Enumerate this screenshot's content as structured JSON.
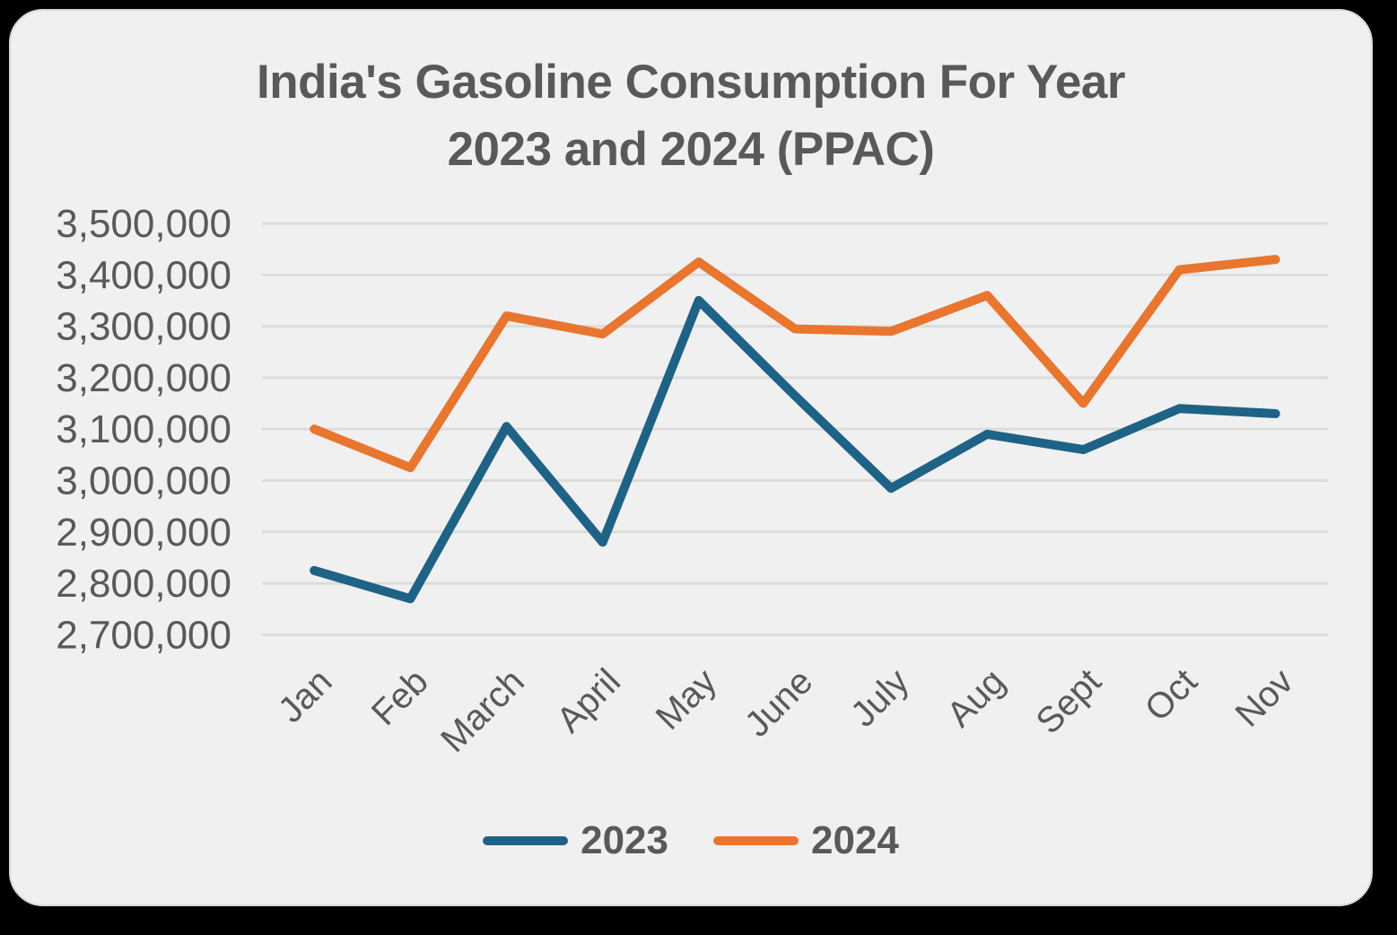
{
  "title": {
    "line1": "India's Gasoline Consumption For Year",
    "line2": "2023 and 2024 (PPAC)"
  },
  "legend": {
    "items": [
      {
        "label": "2023",
        "color": "#1e6286"
      },
      {
        "label": "2024",
        "color": "#e8762f"
      }
    ]
  },
  "axes": {
    "ytick_labels": [
      "3,500,000",
      "3,400,000",
      "3,300,000",
      "3,200,000",
      "3,100,000",
      "3,000,000",
      "2,900,000",
      "2,800,000",
      "2,700,000"
    ],
    "yticks": [
      3500000,
      3400000,
      3300000,
      3200000,
      3100000,
      3000000,
      2900000,
      2800000,
      2700000
    ]
  },
  "chart_data": {
    "type": "line",
    "title": "India's Gasoline Consumption For Year 2023 and 2024 (PPAC)",
    "categories": [
      "Jan",
      "Feb",
      "March",
      "April",
      "May",
      "June",
      "July",
      "Aug",
      "Sept",
      "Oct",
      "Nov"
    ],
    "series": [
      {
        "name": "2023",
        "color": "#1e6286",
        "values": [
          2825000,
          2770000,
          3105000,
          2880000,
          3350000,
          3165000,
          2985000,
          3090000,
          3060000,
          3140000,
          3130000
        ]
      },
      {
        "name": "2024",
        "color": "#e8762f",
        "values": [
          3100000,
          3025000,
          3320000,
          3285000,
          3425000,
          3295000,
          3290000,
          3360000,
          3150000,
          3410000,
          3430000
        ]
      }
    ],
    "ylim": [
      2700000,
      3500000
    ],
    "ytick_step": 100000,
    "xlabel": "",
    "ylabel": "",
    "grid": "horizontal-only",
    "gridline_color": "#dcdcdc",
    "background": "#f0f0f0",
    "text_color": "#595959",
    "legend_position": "bottom-center",
    "x_label_rotation_deg": -45
  }
}
